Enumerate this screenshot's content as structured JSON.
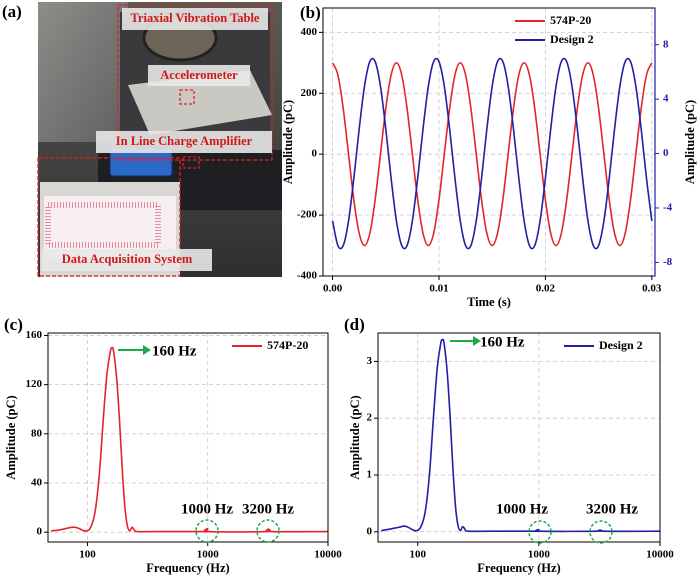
{
  "photo": {
    "label": "(a)",
    "labels": [
      "Triaxial Vibration Table",
      "Accelerometer",
      "In Line Charge Amplifier",
      "Data Acquisition System"
    ]
  },
  "chart_data": [
    {
      "type": "line",
      "label": "(b)",
      "xlabel": "Time (s)",
      "ylabel": "Amplitude (pC)",
      "y2label": "Amplitude (pC)",
      "x": [
        0,
        0.0005,
        0.001,
        0.0015,
        0.002,
        0.0025,
        0.003,
        0.0035,
        0.004,
        0.0045,
        0.005,
        0.0055,
        0.006,
        0.0065,
        0.007,
        0.0075,
        0.008,
        0.0085,
        0.009,
        0.0095,
        0.01,
        0.0105,
        0.011,
        0.0115,
        0.012,
        0.0125,
        0.013,
        0.0135,
        0.014,
        0.0145,
        0.015,
        0.0155,
        0.016,
        0.0165,
        0.017,
        0.0175,
        0.018,
        0.0185,
        0.019,
        0.0195,
        0.02,
        0.0205,
        0.021,
        0.0215,
        0.022,
        0.0225,
        0.023,
        0.0235,
        0.024,
        0.0245,
        0.025,
        0.0255,
        0.026,
        0.0265,
        0.027,
        0.0275,
        0.028,
        0.0285,
        0.029,
        0.0295,
        0.03
      ],
      "series": [
        {
          "name": "574P-20",
          "color": "#e3242b",
          "values": [
            300,
            260,
            150,
            0,
            -150,
            -260,
            -300,
            -260,
            -150,
            0,
            150,
            260,
            300,
            260,
            150,
            0,
            -150,
            -260,
            -300,
            -260,
            -150,
            0,
            150,
            260,
            300,
            260,
            150,
            0,
            -150,
            -260,
            -300,
            -260,
            -150,
            0,
            150,
            260,
            300,
            260,
            150,
            0,
            -150,
            -260,
            -300,
            -260,
            -150,
            0,
            150,
            260,
            300,
            260,
            150,
            0,
            -150,
            -260,
            -300,
            -260,
            -150,
            0,
            150,
            260,
            300
          ]
        },
        {
          "name": "Design 2",
          "color": "#1f1fa8",
          "axis": "y2",
          "values": [
            -4.95,
            -6.76,
            -6.76,
            -4.95,
            -1.81,
            1.81,
            4.95,
            6.76,
            6.76,
            4.95,
            1.81,
            -1.81,
            -4.95,
            -6.76,
            -6.76,
            -4.95,
            -1.81,
            1.81,
            4.95,
            6.76,
            6.76,
            4.95,
            1.81,
            -1.81,
            -4.95,
            -6.76,
            -6.76,
            -4.95,
            -1.81,
            1.81,
            4.95,
            6.76,
            6.76,
            4.95,
            1.81,
            -1.81,
            -4.95,
            -6.76,
            -6.76,
            -4.95,
            -1.81,
            1.81,
            4.95,
            6.76,
            6.76,
            4.95,
            1.81,
            -1.81,
            -4.95,
            -6.76,
            -6.76,
            -4.95,
            -1.81,
            1.81,
            4.95,
            6.76,
            6.76,
            4.95,
            1.81,
            -1.81,
            -4.95
          ]
        }
      ],
      "xlim": [
        -0.0009,
        0.0303
      ],
      "xticks": [
        {
          "value": 0,
          "label": "0.00"
        },
        0.01,
        0.02,
        0.03
      ],
      "ylim": [
        -400,
        480
      ],
      "yticks": [
        -400,
        -200,
        0,
        200,
        400
      ],
      "y2lim": [
        -9,
        10.7
      ],
      "y2ticks": [
        -8,
        -4,
        0,
        4,
        8
      ],
      "grid": true,
      "legend": "upper right"
    },
    {
      "type": "line",
      "label": "(c)",
      "xlabel": "Frequency (Hz)",
      "ylabel": "Amplitude (pC)",
      "xlog": true,
      "x": [
        50,
        60,
        70,
        78,
        85,
        95,
        105,
        115,
        125,
        135,
        145,
        155,
        160,
        165,
        175,
        185,
        195,
        205,
        215,
        225,
        235,
        245,
        260,
        400,
        900,
        970,
        1000,
        1030,
        3000,
        3200,
        3400,
        10000
      ],
      "series": [
        {
          "name": "574P-20",
          "color": "#e3242b",
          "values": [
            1,
            2,
            3.5,
            4,
            3,
            1,
            3,
            15,
            45,
            90,
            128,
            147,
            150,
            147,
            125,
            90,
            50,
            20,
            5,
            1,
            4,
            2,
            0.5,
            0.5,
            0.5,
            0.5,
            3,
            0.5,
            0.5,
            2.5,
            0.5,
            0.5
          ]
        }
      ],
      "xlim": [
        47,
        10000
      ],
      "xticks": [
        100,
        1000,
        10000
      ],
      "ylim": [
        -8,
        162
      ],
      "yticks": [
        0,
        40,
        80,
        120,
        160
      ],
      "grid": true,
      "legend": "upper right",
      "annotations": [
        "160 Hz",
        "1000 Hz",
        "3200 Hz"
      ]
    },
    {
      "type": "line",
      "label": "(d)",
      "xlabel": "Frequency (Hz)",
      "ylabel": "Amplitude (pC)",
      "xlog": true,
      "x": [
        50,
        60,
        70,
        78,
        85,
        95,
        105,
        115,
        125,
        135,
        145,
        155,
        160,
        165,
        175,
        185,
        195,
        205,
        215,
        225,
        235,
        245,
        260,
        400,
        900,
        970,
        1000,
        1030,
        3000,
        3200,
        3400,
        10000
      ],
      "series": [
        {
          "name": "Design 2",
          "color": "#1f1fa8",
          "values": [
            0.02,
            0.05,
            0.08,
            0.1,
            0.07,
            0.02,
            0.07,
            0.34,
            1.01,
            2.03,
            2.89,
            3.32,
            3.38,
            3.32,
            2.82,
            2.03,
            1.13,
            0.45,
            0.11,
            0.02,
            0.09,
            0.05,
            0.01,
            0.01,
            0.01,
            0.01,
            0.04,
            0.01,
            0.01,
            0.03,
            0.01,
            0.01
          ]
        }
      ],
      "xlim": [
        47,
        10000
      ],
      "xticks": [
        100,
        1000,
        10000
      ],
      "ylim": [
        -0.18,
        3.5
      ],
      "yticks": [
        0,
        1,
        2,
        3
      ],
      "grid": true,
      "legend": "upper right",
      "annotations": [
        "160 Hz",
        "1000 Hz",
        "3200 Hz"
      ]
    }
  ]
}
